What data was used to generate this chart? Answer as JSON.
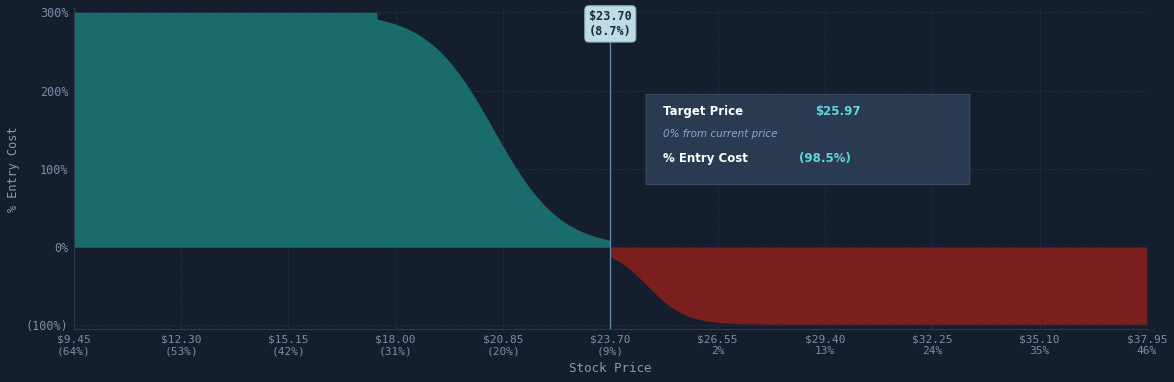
{
  "bg_color": "#151e2d",
  "grid_color": "#1e2d45",
  "x_ticks": [
    9.45,
    12.3,
    15.15,
    18.0,
    20.85,
    23.7,
    26.55,
    29.4,
    32.25,
    35.1,
    37.95
  ],
  "x_tick_labels_top": [
    "$9.45",
    "$12.30",
    "$15.15",
    "$18.00",
    "$20.85",
    "$23.70",
    "$26.55",
    "$29.40",
    "$32.25",
    "$35.10",
    "$37.95"
  ],
  "x_tick_labels_bottom": [
    "(64%)",
    "(53%)",
    "(42%)",
    "(31%)",
    "(20%)",
    "(9%)",
    "2%",
    "13%",
    "24%",
    "35%",
    "46%"
  ],
  "y_ticks": [
    -100,
    0,
    100,
    200,
    300
  ],
  "y_tick_labels": [
    "(100%)",
    "0%",
    "100%",
    "200%",
    "300%"
  ],
  "xlabel": "Stock Price",
  "ylabel": "% Entry Cost",
  "current_price": 23.7,
  "annotation_price": "$23.70",
  "annotation_pct": "(8.7%)",
  "tooltip_line1_white": "Target Price ",
  "tooltip_line1_teal": "$25.97",
  "tooltip_line2": "0% from current price",
  "tooltip_line3_white": "% Entry Cost ",
  "tooltip_line3_teal": "(98.5%)",
  "teal_color": "#1a6b6b",
  "red_color": "#7a1e1e",
  "x_min": 9.45,
  "x_max": 37.95,
  "y_min": -100,
  "y_max": 305,
  "curve_start_descent": 17.5,
  "curve_end_descent": 23.7,
  "right_curve_bottom": -98.5,
  "right_curve_reach_x": 26.5
}
